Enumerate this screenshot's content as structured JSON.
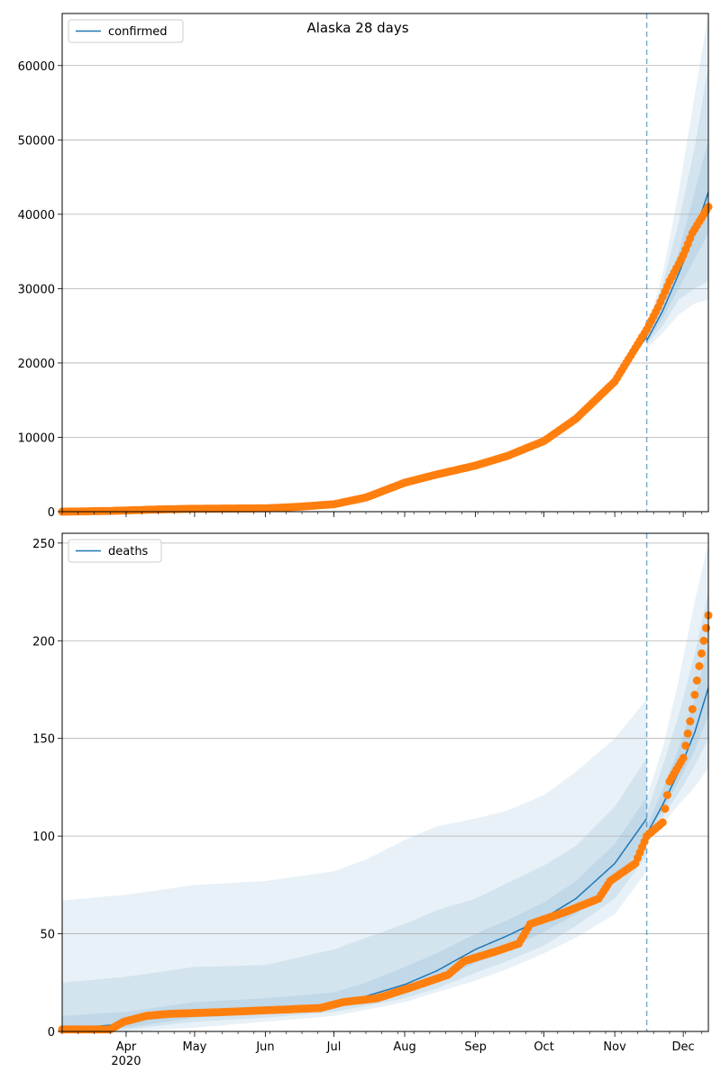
{
  "figure": {
    "title": "Alaska 28 days",
    "colors": {
      "line": "#1f77b4",
      "points": "#ff7f0e",
      "band": "#1f77b4",
      "grid": "#b0b0b0",
      "vline": "#1f77b4"
    }
  },
  "x_axis": {
    "months": [
      {
        "label": "Apr",
        "date": "2020-04-01"
      },
      {
        "label": "May",
        "date": "2020-05-01"
      },
      {
        "label": "Jun",
        "date": "2020-06-01"
      },
      {
        "label": "Jul",
        "date": "2020-07-01"
      },
      {
        "label": "Aug",
        "date": "2020-08-01"
      },
      {
        "label": "Sep",
        "date": "2020-09-01"
      },
      {
        "label": "Oct",
        "date": "2020-10-01"
      },
      {
        "label": "Nov",
        "date": "2020-11-01"
      },
      {
        "label": "Dec",
        "date": "2020-12-01"
      }
    ],
    "year_label": "2020",
    "range": [
      "2020-03-04",
      "2020-12-12"
    ],
    "minor_ticks": "weekly"
  },
  "chart_data": [
    {
      "type": "line",
      "legend": "confirmed",
      "legend_position": "top-left",
      "grid": "y-major",
      "ylim": [
        0,
        67000
      ],
      "y_ticks": [
        0,
        10000,
        20000,
        30000,
        40000,
        50000,
        60000
      ],
      "forecast_start": "2020-11-15",
      "observed": {
        "x": [
          "2020-03-04",
          "2020-03-25",
          "2020-04-15",
          "2020-05-01",
          "2020-06-01",
          "2020-06-15",
          "2020-07-01",
          "2020-07-15",
          "2020-08-01",
          "2020-08-15",
          "2020-09-01",
          "2020-09-15",
          "2020-10-01",
          "2020-10-15",
          "2020-11-01",
          "2020-11-15",
          "2020-11-20",
          "2020-11-25",
          "2020-12-01",
          "2020-12-05",
          "2020-12-12"
        ],
        "y": [
          0,
          100,
          300,
          400,
          450,
          650,
          1000,
          1900,
          3900,
          5000,
          6200,
          7500,
          9500,
          12500,
          17500,
          24500,
          27500,
          31000,
          34500,
          37500,
          41000
        ]
      },
      "fit": {
        "x": [
          "2020-03-04",
          "2020-04-01",
          "2020-05-01",
          "2020-06-01",
          "2020-07-01",
          "2020-07-15",
          "2020-08-01",
          "2020-08-15",
          "2020-09-01",
          "2020-09-15",
          "2020-10-01",
          "2020-10-15",
          "2020-11-01",
          "2020-11-15"
        ],
        "y": [
          0,
          200,
          350,
          450,
          950,
          1900,
          3900,
          5000,
          6200,
          7500,
          9500,
          12500,
          17500,
          23500
        ]
      },
      "forecast": {
        "x": [
          "2020-11-15",
          "2020-11-22",
          "2020-11-29",
          "2020-12-06",
          "2020-12-12"
        ],
        "median": [
          23000,
          27000,
          32000,
          37500,
          43000
        ],
        "bands": [
          {
            "lower": [
              22000,
              24000,
              26500,
              28000,
              28500
            ],
            "upper": [
              24500,
              32000,
              43000,
              56000,
              67000
            ]
          },
          {
            "lower": [
              22500,
              25000,
              28500,
              30000,
              31000
            ],
            "upper": [
              24000,
              30500,
              39000,
              49000,
              60000
            ]
          },
          {
            "lower": [
              22800,
              26000,
              30000,
              34000,
              37500
            ],
            "upper": [
              23500,
              28500,
              35000,
              43000,
              50000
            ]
          }
        ]
      }
    },
    {
      "type": "line",
      "legend": "deaths",
      "legend_position": "top-left",
      "grid": "y-major",
      "ylim": [
        0,
        255
      ],
      "y_ticks": [
        0,
        50,
        100,
        150,
        200,
        250
      ],
      "forecast_start": "2020-11-15",
      "observed": {
        "x": [
          "2020-03-04",
          "2020-03-25",
          "2020-03-31",
          "2020-04-10",
          "2020-04-20",
          "2020-05-15",
          "2020-06-25",
          "2020-07-05",
          "2020-07-20",
          "2020-08-05",
          "2020-08-20",
          "2020-08-27",
          "2020-09-10",
          "2020-09-20",
          "2020-09-25",
          "2020-10-10",
          "2020-10-25",
          "2020-10-30",
          "2020-11-10",
          "2020-11-15",
          "2020-11-22",
          "2020-11-25",
          "2020-12-01",
          "2020-12-05",
          "2020-12-08",
          "2020-12-12"
        ],
        "y": [
          1,
          1,
          5,
          8,
          9,
          10,
          12,
          15,
          17,
          23,
          29,
          36,
          41,
          45,
          55,
          61,
          68,
          77,
          86,
          100,
          107,
          128,
          140,
          165,
          187,
          213
        ]
      },
      "fit": {
        "x": [
          "2020-03-04",
          "2020-04-01",
          "2020-04-15",
          "2020-05-01",
          "2020-06-01",
          "2020-07-01",
          "2020-07-15",
          "2020-08-01",
          "2020-08-15",
          "2020-09-01",
          "2020-09-15",
          "2020-10-01",
          "2020-10-15",
          "2020-11-01",
          "2020-11-15"
        ],
        "y": [
          1,
          4,
          8,
          10,
          11,
          14,
          18,
          24,
          31,
          42,
          49,
          58,
          68,
          86,
          109
        ]
      },
      "forecast": {
        "x": [
          "2020-11-15",
          "2020-11-22",
          "2020-11-29",
          "2020-12-06",
          "2020-12-12"
        ],
        "median": [
          101,
          116,
          133,
          153,
          176
        ],
        "bands": [
          {
            "lower": [
              97,
              106,
              116,
              125,
              135
            ],
            "upper": [
              120,
              145,
              180,
              220,
              250
            ]
          },
          {
            "lower": [
              99,
              110,
              122,
              136,
              150
            ],
            "upper": [
              112,
              136,
              162,
              193,
              225
            ]
          },
          {
            "lower": [
              100,
              113,
              128,
              144,
              162
            ],
            "upper": [
              105,
              124,
              145,
              170,
              198
            ]
          }
        ]
      },
      "historical_bands": {
        "x": [
          "2020-03-04",
          "2020-04-01",
          "2020-05-01",
          "2020-06-01",
          "2020-07-01",
          "2020-07-15",
          "2020-08-01",
          "2020-08-15",
          "2020-09-01",
          "2020-09-15",
          "2020-10-01",
          "2020-10-15",
          "2020-11-01",
          "2020-11-15"
        ],
        "bands": [
          {
            "lower": [
              0,
              0,
              2,
              5,
              8,
              11,
              15,
              20,
              26,
              32,
              40,
              48,
              60,
              82
            ],
            "upper": [
              67,
              70,
              75,
              77,
              82,
              88,
              98,
              105,
              109,
              113,
              121,
              133,
              150,
              170
            ]
          },
          {
            "lower": [
              0,
              1,
              5,
              7,
              10,
              13,
              17,
              22,
              30,
              36,
              44,
              54,
              68,
              90
            ],
            "upper": [
              25,
              28,
              33,
              34,
              42,
              48,
              55,
              62,
              68,
              76,
              85,
              95,
              115,
              140
            ]
          },
          {
            "lower": [
              0,
              2,
              7,
              9,
              12,
              15,
              20,
              26,
              35,
              42,
              51,
              60,
              76,
              98
            ],
            "upper": [
              8,
              10,
              15,
              17,
              20,
              25,
              33,
              40,
              50,
              57,
              66,
              77,
              96,
              120
            ]
          }
        ]
      }
    }
  ]
}
